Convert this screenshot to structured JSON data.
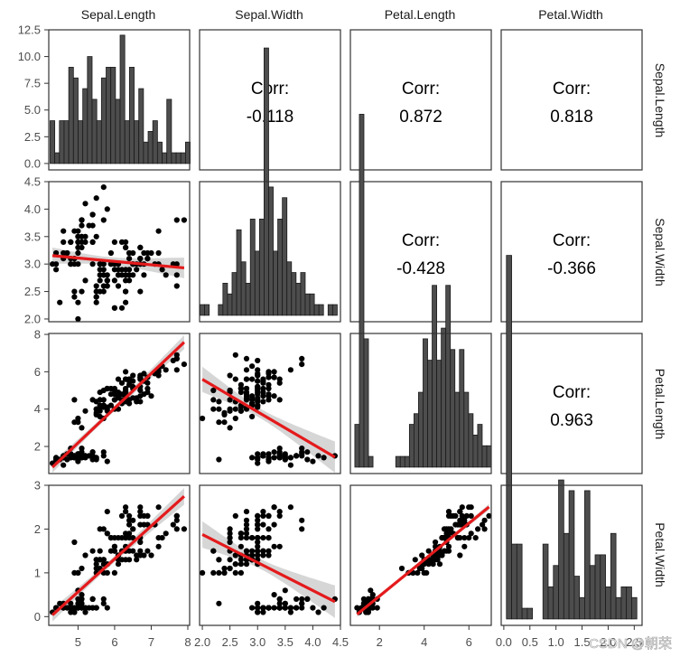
{
  "strip_top": [
    "Sepal.Length",
    "Sepal.Width",
    "Petal.Length",
    "Petal.Width"
  ],
  "strip_right": [
    "Sepal.Length",
    "Sepal.Width",
    "Petal.Length",
    "Petal.Width"
  ],
  "corr_label": "Corr:",
  "watermark": "CSDN @朝荣",
  "colors": {
    "bar": "#4d4d4d",
    "point": "#000000",
    "fit_line": "#e41a1c",
    "ci_band": "#c8c8c8",
    "border": "#333333",
    "tick_text": "#4d4d4d"
  },
  "chart_data": {
    "type": "scatter",
    "title": "",
    "variables": [
      "Sepal.Length",
      "Sepal.Width",
      "Petal.Length",
      "Petal.Width"
    ],
    "axes": {
      "Sepal.Length": {
        "range": [
          4.2,
          8.05
        ],
        "ticks": [
          5,
          6,
          7,
          8
        ]
      },
      "Sepal.Width": {
        "range": [
          1.95,
          4.5
        ],
        "ticks": [
          2.0,
          2.5,
          3.0,
          3.5,
          4.0,
          4.5
        ],
        "tick_labels": [
          "2.0",
          "2.5",
          "3.0",
          "3.5",
          "4.0",
          "4.5"
        ]
      },
      "Petal.Length": {
        "range": [
          0.7,
          7.0
        ],
        "row_range": [
          0.55,
          8.05
        ],
        "ticks": [
          2,
          4,
          6
        ],
        "row_ticks": [
          2,
          4,
          6,
          8
        ]
      },
      "Petal.Width": {
        "range": [
          -0.05,
          2.65
        ],
        "row_range": [
          -0.2,
          3.0
        ],
        "ticks": [
          0.0,
          0.5,
          1.0,
          1.5,
          2.0,
          2.5
        ],
        "tick_labels": [
          "0.0",
          "0.5",
          "1.0",
          "1.5",
          "2.0",
          "2.5"
        ],
        "row_ticks": [
          0,
          1,
          2,
          3
        ]
      }
    },
    "count_axis": {
      "range": [
        -0.6,
        12.5
      ],
      "ticks": [
        0.0,
        2.5,
        5.0,
        7.5,
        10.0,
        12.5
      ],
      "tick_labels": [
        "0.0",
        "2.5",
        "5.0",
        "7.5",
        "10.0",
        "12.5"
      ]
    },
    "correlations": [
      {
        "row": "Sepal.Length",
        "col": "Sepal.Width",
        "value": "-0.118"
      },
      {
        "row": "Sepal.Length",
        "col": "Petal.Length",
        "value": "0.872"
      },
      {
        "row": "Sepal.Length",
        "col": "Petal.Width",
        "value": "0.818"
      },
      {
        "row": "Sepal.Width",
        "col": "Petal.Length",
        "value": "-0.428"
      },
      {
        "row": "Sepal.Width",
        "col": "Petal.Width",
        "value": "-0.366"
      },
      {
        "row": "Petal.Length",
        "col": "Petal.Width",
        "value": "0.963"
      }
    ],
    "histograms": [
      {
        "variable": "Sepal.Length",
        "bins": [
          4.3,
          8.0
        ],
        "counts": [
          4,
          1,
          4,
          4,
          9,
          8,
          4,
          7,
          10,
          6,
          4,
          8,
          9,
          9,
          6,
          12,
          4,
          9,
          4,
          7,
          2,
          3,
          4,
          2,
          1,
          6,
          1,
          1,
          1,
          2
        ]
      },
      {
        "variable": "Sepal.Width",
        "bins": [
          2.0,
          4.4
        ],
        "counts": [
          1,
          1,
          0,
          0,
          1,
          3,
          2,
          4,
          8,
          5,
          3,
          9,
          6,
          9,
          25,
          12,
          6,
          9,
          11,
          5,
          4,
          3,
          4,
          2,
          2,
          1,
          1,
          0,
          1,
          1
        ]
      },
      {
        "variable": "Petal.Length",
        "bins": [
          1.0,
          6.9
        ],
        "counts": [
          4,
          33,
          12,
          1,
          0,
          0,
          0,
          0,
          0,
          1,
          1,
          1,
          4,
          5,
          7,
          12,
          10,
          17,
          10,
          13,
          17,
          11,
          7,
          11,
          7,
          5,
          3,
          4,
          2,
          2
        ]
      },
      {
        "variable": "Petal.Width",
        "bins": [
          0.1,
          2.5
        ],
        "counts": [
          34,
          7,
          7,
          1,
          1,
          0,
          0,
          7,
          3,
          5,
          13,
          8,
          12,
          4,
          2,
          12,
          5,
          6,
          6,
          3,
          8,
          2,
          3,
          3,
          2
        ]
      }
    ],
    "iris": {
      "Sepal.Length": [
        5.1,
        4.9,
        4.7,
        4.6,
        5.0,
        5.4,
        4.6,
        5.0,
        4.4,
        4.9,
        5.4,
        4.8,
        4.8,
        4.3,
        5.8,
        5.7,
        5.4,
        5.1,
        5.7,
        5.1,
        5.4,
        5.1,
        4.6,
        5.1,
        4.8,
        5.0,
        5.0,
        5.2,
        5.2,
        4.7,
        4.8,
        5.4,
        5.2,
        5.5,
        4.9,
        5.0,
        5.5,
        4.9,
        4.4,
        5.1,
        5.0,
        4.5,
        4.4,
        5.0,
        5.1,
        4.8,
        5.1,
        4.6,
        5.3,
        5.0,
        7.0,
        6.4,
        6.9,
        5.5,
        6.5,
        5.7,
        6.3,
        4.9,
        6.6,
        5.2,
        5.0,
        5.9,
        6.0,
        6.1,
        5.6,
        6.7,
        5.6,
        5.8,
        6.2,
        5.6,
        5.9,
        6.1,
        6.3,
        6.1,
        6.4,
        6.6,
        6.8,
        6.7,
        6.0,
        5.7,
        5.5,
        5.5,
        5.8,
        6.0,
        5.4,
        6.0,
        6.7,
        6.3,
        5.6,
        5.5,
        5.5,
        6.1,
        5.8,
        5.0,
        5.6,
        5.7,
        5.7,
        6.2,
        5.1,
        5.7,
        6.3,
        5.8,
        7.1,
        6.3,
        6.5,
        7.6,
        4.9,
        7.3,
        6.7,
        7.2,
        6.5,
        6.4,
        6.8,
        5.7,
        5.8,
        6.4,
        6.5,
        7.7,
        7.7,
        6.0,
        6.9,
        5.6,
        7.7,
        6.3,
        6.7,
        7.2,
        6.2,
        6.1,
        6.4,
        7.2,
        7.4,
        7.9,
        6.4,
        6.3,
        6.1,
        7.7,
        6.3,
        6.4,
        6.0,
        6.9,
        6.7,
        6.9,
        5.8,
        6.8,
        6.7,
        6.7,
        6.3,
        6.5,
        6.2,
        5.9
      ],
      "Sepal.Width": [
        3.5,
        3.0,
        3.2,
        3.1,
        3.6,
        3.9,
        3.4,
        3.4,
        2.9,
        3.1,
        3.7,
        3.4,
        3.0,
        3.0,
        4.0,
        4.4,
        3.9,
        3.5,
        3.8,
        3.8,
        3.4,
        3.7,
        3.6,
        3.3,
        3.4,
        3.0,
        3.4,
        3.5,
        3.4,
        3.2,
        3.1,
        3.4,
        4.1,
        4.2,
        3.1,
        3.2,
        3.5,
        3.6,
        3.0,
        3.4,
        3.5,
        2.3,
        3.2,
        3.5,
        3.8,
        3.0,
        3.8,
        3.2,
        3.7,
        3.3,
        3.2,
        3.2,
        3.1,
        2.3,
        2.8,
        2.8,
        3.3,
        2.4,
        2.9,
        2.7,
        2.0,
        3.0,
        2.2,
        2.9,
        2.9,
        3.1,
        3.0,
        2.7,
        2.2,
        2.5,
        3.2,
        2.8,
        2.5,
        2.8,
        2.9,
        3.0,
        2.8,
        3.0,
        2.9,
        2.6,
        2.4,
        2.4,
        2.7,
        2.7,
        3.0,
        3.4,
        3.1,
        2.3,
        3.0,
        2.5,
        2.6,
        3.0,
        2.6,
        2.3,
        2.7,
        3.0,
        2.9,
        2.9,
        2.5,
        2.8,
        3.3,
        2.7,
        3.0,
        2.9,
        3.0,
        3.0,
        2.5,
        2.9,
        2.5,
        3.6,
        3.2,
        2.7,
        3.0,
        2.5,
        2.8,
        3.2,
        3.0,
        3.8,
        2.6,
        2.2,
        3.2,
        2.8,
        2.8,
        2.7,
        3.3,
        3.2,
        2.8,
        3.0,
        2.8,
        3.0,
        2.8,
        3.8,
        2.8,
        2.8,
        2.6,
        3.0,
        3.4,
        3.1,
        3.0,
        3.1,
        3.1,
        3.1,
        2.7,
        3.2,
        3.3,
        3.0,
        2.5,
        3.0,
        3.4,
        3.0
      ],
      "Petal.Length": [
        1.4,
        1.4,
        1.3,
        1.5,
        1.4,
        1.7,
        1.4,
        1.5,
        1.4,
        1.5,
        1.5,
        1.6,
        1.4,
        1.1,
        1.2,
        1.5,
        1.3,
        1.4,
        1.7,
        1.5,
        1.7,
        1.5,
        1.0,
        1.7,
        1.9,
        1.6,
        1.6,
        1.5,
        1.4,
        1.6,
        1.6,
        1.5,
        1.5,
        1.4,
        1.5,
        1.2,
        1.3,
        1.4,
        1.3,
        1.5,
        1.3,
        1.3,
        1.3,
        1.6,
        1.9,
        1.4,
        1.6,
        1.4,
        1.5,
        1.4,
        4.7,
        4.5,
        4.9,
        4.0,
        4.6,
        4.5,
        4.7,
        3.3,
        4.6,
        3.9,
        3.5,
        4.2,
        4.0,
        4.7,
        3.6,
        4.4,
        4.5,
        4.1,
        4.5,
        3.9,
        4.8,
        4.0,
        4.9,
        4.7,
        4.3,
        4.4,
        4.8,
        5.0,
        4.5,
        3.5,
        3.8,
        3.7,
        3.9,
        5.1,
        4.5,
        4.5,
        4.7,
        4.4,
        4.1,
        4.0,
        4.4,
        4.6,
        4.0,
        3.3,
        4.2,
        4.2,
        4.2,
        4.3,
        3.0,
        4.1,
        6.0,
        5.1,
        5.9,
        5.6,
        5.8,
        6.6,
        4.5,
        6.3,
        5.8,
        6.1,
        5.1,
        5.3,
        5.5,
        5.0,
        5.1,
        5.3,
        5.5,
        6.7,
        6.9,
        5.0,
        5.7,
        4.9,
        6.7,
        4.9,
        5.7,
        6.0,
        4.8,
        4.9,
        5.6,
        5.8,
        6.1,
        6.4,
        5.6,
        5.1,
        5.6,
        6.1,
        5.6,
        5.5,
        4.8,
        5.4,
        5.6,
        5.1,
        5.1,
        5.9,
        5.7,
        5.2,
        5.0,
        5.2,
        5.4,
        5.1
      ],
      "Petal.Width": [
        0.2,
        0.2,
        0.2,
        0.2,
        0.2,
        0.4,
        0.3,
        0.2,
        0.2,
        0.1,
        0.2,
        0.2,
        0.1,
        0.1,
        0.2,
        0.4,
        0.4,
        0.3,
        0.3,
        0.3,
        0.2,
        0.4,
        0.2,
        0.5,
        0.2,
        0.2,
        0.4,
        0.2,
        0.2,
        0.2,
        0.2,
        0.4,
        0.1,
        0.2,
        0.2,
        0.2,
        0.2,
        0.1,
        0.2,
        0.2,
        0.3,
        0.3,
        0.2,
        0.6,
        0.4,
        0.3,
        0.2,
        0.2,
        0.2,
        0.2,
        1.4,
        1.5,
        1.5,
        1.3,
        1.5,
        1.3,
        1.6,
        1.0,
        1.3,
        1.4,
        1.0,
        1.5,
        1.0,
        1.4,
        1.3,
        1.4,
        1.5,
        1.0,
        1.5,
        1.1,
        1.8,
        1.3,
        1.5,
        1.2,
        1.3,
        1.4,
        1.4,
        1.7,
        1.5,
        1.0,
        1.1,
        1.0,
        1.2,
        1.6,
        1.5,
        1.6,
        1.5,
        1.3,
        1.3,
        1.3,
        1.2,
        1.4,
        1.2,
        1.0,
        1.3,
        1.2,
        1.3,
        1.3,
        1.1,
        1.3,
        2.5,
        1.9,
        2.1,
        1.8,
        2.2,
        2.1,
        1.7,
        1.8,
        1.8,
        2.5,
        2.0,
        1.9,
        2.1,
        2.0,
        2.4,
        2.3,
        1.8,
        2.2,
        2.3,
        1.5,
        2.3,
        2.0,
        2.0,
        1.8,
        2.1,
        1.8,
        1.8,
        1.8,
        2.1,
        1.6,
        1.9,
        2.0,
        2.2,
        1.5,
        1.4,
        2.3,
        2.4,
        1.8,
        1.8,
        2.1,
        2.4,
        2.3,
        1.9,
        2.3,
        2.5,
        2.3,
        1.9,
        2.0,
        2.3,
        1.8
      ]
    }
  }
}
